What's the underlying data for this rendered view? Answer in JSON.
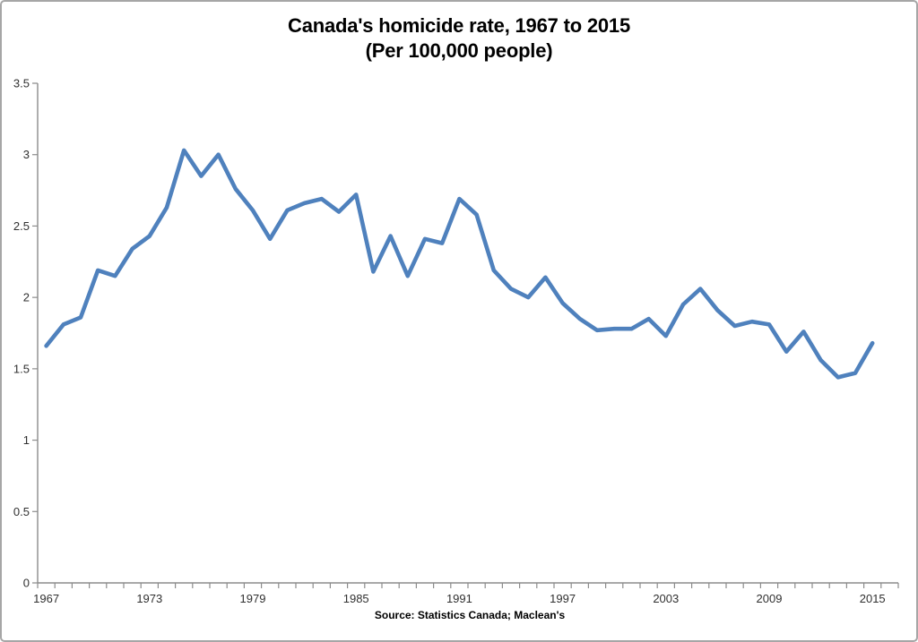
{
  "figure": {
    "title_line1": "Canada's homicide rate, 1967 to 2015",
    "title_line2": "(Per 100,000 people)",
    "source": "Source: Statistics Canada; Maclean's"
  },
  "colors": {
    "line": "#4F81BD",
    "axis": "#8C8C8C",
    "tick_label": "#303030",
    "title": "#000000",
    "border": "#A6A6A6",
    "background": "#FFFFFF"
  },
  "chart_data": {
    "type": "line",
    "title": "Canada's homicide rate, 1967 to 2015 (Per 100,000 people)",
    "xlabel": "",
    "ylabel": "",
    "grid": false,
    "legend": "none",
    "ylim": [
      0,
      3.5
    ],
    "ytick_step": 0.5,
    "ytick_labels": [
      "0",
      "0.5",
      "1",
      "1.5",
      "2",
      "2.5",
      "3",
      "3.5"
    ],
    "xtick_labels": [
      1967,
      1973,
      1979,
      1985,
      1991,
      1997,
      2003,
      2009,
      2015
    ],
    "x": [
      1967,
      1968,
      1969,
      1970,
      1971,
      1972,
      1973,
      1974,
      1975,
      1976,
      1977,
      1978,
      1979,
      1980,
      1981,
      1982,
      1983,
      1984,
      1985,
      1986,
      1987,
      1988,
      1989,
      1990,
      1991,
      1992,
      1993,
      1994,
      1995,
      1996,
      1997,
      1998,
      1999,
      2000,
      2001,
      2002,
      2003,
      2004,
      2005,
      2006,
      2007,
      2008,
      2009,
      2010,
      2011,
      2012,
      2013,
      2014,
      2015
    ],
    "values": [
      1.66,
      1.81,
      1.86,
      2.19,
      2.15,
      2.34,
      2.43,
      2.63,
      3.03,
      2.85,
      3.0,
      2.76,
      2.61,
      2.41,
      2.61,
      2.66,
      2.69,
      2.6,
      2.72,
      2.18,
      2.43,
      2.15,
      2.41,
      2.38,
      2.69,
      2.58,
      2.19,
      2.06,
      2.0,
      2.14,
      1.96,
      1.85,
      1.77,
      1.78,
      1.78,
      1.85,
      1.73,
      1.95,
      2.06,
      1.91,
      1.8,
      1.83,
      1.81,
      1.62,
      1.76,
      1.56,
      1.44,
      1.47,
      1.68
    ],
    "source_caption": "Source: Statistics Canada; Maclean's"
  }
}
